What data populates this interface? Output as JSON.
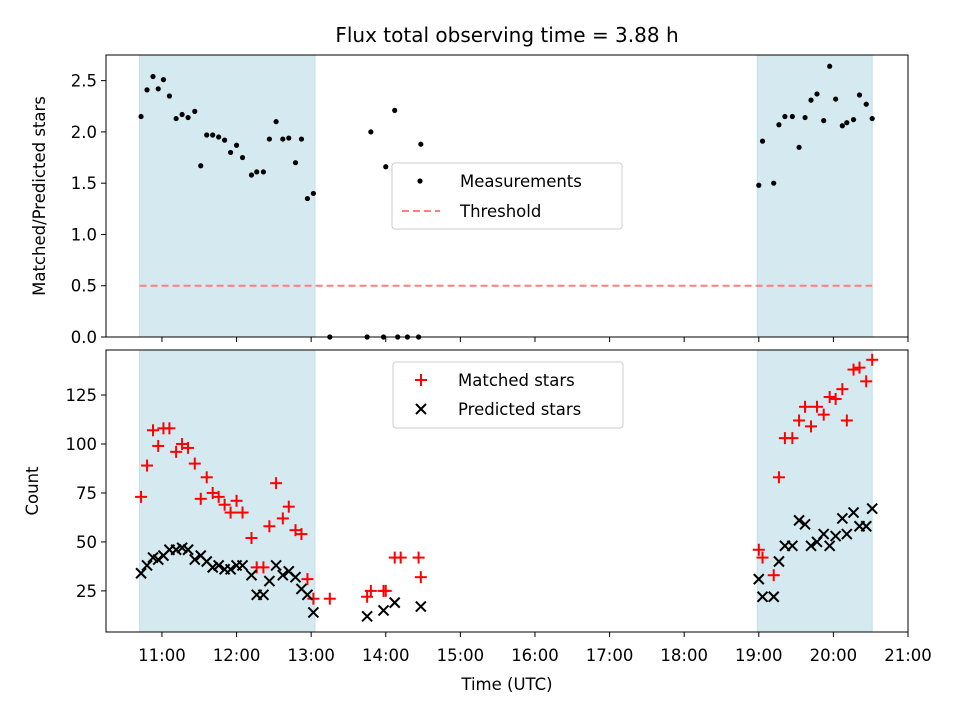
{
  "chart_data": {
    "type": "scatter",
    "title": "Flux total observing time = 3.88 h",
    "xlabel": "Time (UTC)",
    "xlim": [
      10.25,
      21.0
    ],
    "x_ticks": [
      {
        "v": 11,
        "label": "11:00"
      },
      {
        "v": 12,
        "label": "12:00"
      },
      {
        "v": 13,
        "label": "13:00"
      },
      {
        "v": 14,
        "label": "14:00"
      },
      {
        "v": 15,
        "label": "15:00"
      },
      {
        "v": 16,
        "label": "16:00"
      },
      {
        "v": 17,
        "label": "17:00"
      },
      {
        "v": 18,
        "label": "18:00"
      },
      {
        "v": 19,
        "label": "19:00"
      },
      {
        "v": 20,
        "label": "20:00"
      },
      {
        "v": 21,
        "label": "21:00"
      }
    ],
    "shaded_spans": [
      [
        10.7,
        13.05
      ],
      [
        18.98,
        20.52
      ]
    ],
    "shade_color": "#d4eaf0",
    "panels": [
      {
        "ylabel": "Matched/Predicted stars",
        "ylim": [
          0,
          2.75
        ],
        "y_ticks": [
          {
            "v": 0.0,
            "label": "0.0"
          },
          {
            "v": 0.5,
            "label": "0.5"
          },
          {
            "v": 1.0,
            "label": "1.0"
          },
          {
            "v": 1.5,
            "label": "1.5"
          },
          {
            "v": 2.0,
            "label": "2.0"
          },
          {
            "v": 2.5,
            "label": "2.5"
          }
        ],
        "threshold": {
          "value": 0.5,
          "x_range": [
            10.7,
            20.52
          ],
          "color": "#ff7f7f"
        },
        "legend": {
          "position": "center-right",
          "items": [
            {
              "label": "Measurements",
              "marker": "dot",
              "color": "#000000"
            },
            {
              "label": "Threshold",
              "marker": "dash",
              "color": "#ff7f7f"
            }
          ]
        },
        "series": [
          {
            "name": "Measurements",
            "marker": "dot",
            "color": "#000000",
            "points": [
              [
                10.72,
                2.15
              ],
              [
                10.8,
                2.41
              ],
              [
                10.88,
                2.54
              ],
              [
                10.95,
                2.42
              ],
              [
                11.02,
                2.51
              ],
              [
                11.1,
                2.35
              ],
              [
                11.19,
                2.13
              ],
              [
                11.27,
                2.17
              ],
              [
                11.35,
                2.14
              ],
              [
                11.44,
                2.2
              ],
              [
                11.52,
                1.67
              ],
              [
                11.6,
                1.97
              ],
              [
                11.68,
                1.97
              ],
              [
                11.76,
                1.95
              ],
              [
                11.84,
                1.92
              ],
              [
                11.92,
                1.8
              ],
              [
                12.0,
                1.87
              ],
              [
                12.08,
                1.75
              ],
              [
                12.2,
                1.58
              ],
              [
                12.27,
                1.61
              ],
              [
                12.36,
                1.61
              ],
              [
                12.44,
                1.93
              ],
              [
                12.53,
                2.1
              ],
              [
                12.62,
                1.93
              ],
              [
                12.7,
                1.94
              ],
              [
                12.79,
                1.7
              ],
              [
                12.87,
                1.93
              ],
              [
                12.95,
                1.35
              ],
              [
                13.03,
                1.4
              ],
              [
                13.25,
                0.0
              ],
              [
                13.75,
                0.0
              ],
              [
                13.8,
                2.0
              ],
              [
                13.97,
                0.0
              ],
              [
                14.0,
                1.66
              ],
              [
                14.12,
                2.21
              ],
              [
                14.16,
                0.0
              ],
              [
                14.29,
                0.0
              ],
              [
                14.44,
                0.0
              ],
              [
                14.47,
                1.88
              ],
              [
                19.0,
                1.48
              ],
              [
                19.05,
                1.91
              ],
              [
                19.2,
                1.5
              ],
              [
                19.27,
                2.07
              ],
              [
                19.35,
                2.15
              ],
              [
                19.45,
                2.15
              ],
              [
                19.54,
                1.85
              ],
              [
                19.62,
                2.14
              ],
              [
                19.7,
                2.31
              ],
              [
                19.78,
                2.37
              ],
              [
                19.87,
                2.11
              ],
              [
                19.95,
                2.64
              ],
              [
                20.03,
                2.32
              ],
              [
                20.12,
                2.06
              ],
              [
                20.18,
                2.09
              ],
              [
                20.27,
                2.12
              ],
              [
                20.35,
                2.36
              ],
              [
                20.44,
                2.27
              ],
              [
                20.52,
                2.13
              ]
            ]
          }
        ]
      },
      {
        "ylabel": "Count",
        "ylim": [
          4,
          148
        ],
        "y_ticks": [
          {
            "v": 25,
            "label": "25"
          },
          {
            "v": 50,
            "label": "50"
          },
          {
            "v": 75,
            "label": "75"
          },
          {
            "v": 100,
            "label": "100"
          },
          {
            "v": 125,
            "label": "125"
          }
        ],
        "legend": {
          "position": "upper-center",
          "items": [
            {
              "label": "Matched stars",
              "marker": "plus",
              "color": "#ff0000"
            },
            {
              "label": "Predicted stars",
              "marker": "x",
              "color": "#000000"
            }
          ]
        },
        "series": [
          {
            "name": "Matched stars",
            "marker": "plus",
            "color": "#ff0000",
            "points": [
              [
                10.72,
                73
              ],
              [
                10.8,
                89
              ],
              [
                10.88,
                107
              ],
              [
                10.95,
                99
              ],
              [
                11.02,
                108
              ],
              [
                11.1,
                108
              ],
              [
                11.19,
                96
              ],
              [
                11.27,
                100
              ],
              [
                11.35,
                98
              ],
              [
                11.44,
                90
              ],
              [
                11.52,
                72
              ],
              [
                11.6,
                83
              ],
              [
                11.68,
                75
              ],
              [
                11.76,
                73
              ],
              [
                11.84,
                69
              ],
              [
                11.92,
                65
              ],
              [
                12.0,
                71
              ],
              [
                12.08,
                65
              ],
              [
                12.2,
                52
              ],
              [
                12.27,
                37
              ],
              [
                12.36,
                37
              ],
              [
                12.44,
                58
              ],
              [
                12.53,
                80
              ],
              [
                12.62,
                62
              ],
              [
                12.7,
                68
              ],
              [
                12.79,
                56
              ],
              [
                12.87,
                54
              ],
              [
                12.95,
                31
              ],
              [
                13.03,
                21
              ],
              [
                13.25,
                21
              ],
              [
                13.75,
                22
              ],
              [
                13.8,
                25
              ],
              [
                13.97,
                25
              ],
              [
                14.0,
                25
              ],
              [
                14.12,
                42
              ],
              [
                14.2,
                42
              ],
              [
                14.44,
                42
              ],
              [
                14.47,
                32
              ],
              [
                19.0,
                46
              ],
              [
                19.05,
                42
              ],
              [
                19.2,
                33
              ],
              [
                19.27,
                83
              ],
              [
                19.35,
                103
              ],
              [
                19.45,
                103
              ],
              [
                19.54,
                112
              ],
              [
                19.62,
                119
              ],
              [
                19.7,
                109
              ],
              [
                19.78,
                119
              ],
              [
                19.87,
                115
              ],
              [
                19.95,
                124
              ],
              [
                20.03,
                123
              ],
              [
                20.12,
                128
              ],
              [
                20.18,
                112
              ],
              [
                20.27,
                138
              ],
              [
                20.35,
                139
              ],
              [
                20.44,
                132
              ],
              [
                20.52,
                143
              ]
            ]
          },
          {
            "name": "Predicted stars",
            "marker": "x",
            "color": "#000000",
            "points": [
              [
                10.72,
                34
              ],
              [
                10.8,
                38
              ],
              [
                10.88,
                42
              ],
              [
                10.95,
                41
              ],
              [
                11.02,
                43
              ],
              [
                11.1,
                46
              ],
              [
                11.19,
                46
              ],
              [
                11.27,
                47
              ],
              [
                11.35,
                46
              ],
              [
                11.44,
                41
              ],
              [
                11.52,
                43
              ],
              [
                11.6,
                40
              ],
              [
                11.68,
                37
              ],
              [
                11.76,
                38
              ],
              [
                11.84,
                36
              ],
              [
                11.92,
                36
              ],
              [
                12.0,
                38
              ],
              [
                12.08,
                38
              ],
              [
                12.2,
                33
              ],
              [
                12.27,
                23
              ],
              [
                12.36,
                23
              ],
              [
                12.44,
                30
              ],
              [
                12.53,
                38
              ],
              [
                12.62,
                33
              ],
              [
                12.7,
                35
              ],
              [
                12.79,
                32
              ],
              [
                12.87,
                26
              ],
              [
                12.95,
                23
              ],
              [
                13.03,
                14
              ],
              [
                13.75,
                12
              ],
              [
                13.97,
                15
              ],
              [
                14.12,
                19
              ],
              [
                14.47,
                17
              ],
              [
                19.0,
                31
              ],
              [
                19.05,
                22
              ],
              [
                19.2,
                22
              ],
              [
                19.27,
                40
              ],
              [
                19.35,
                48
              ],
              [
                19.45,
                48
              ],
              [
                19.54,
                61
              ],
              [
                19.62,
                59
              ],
              [
                19.7,
                48
              ],
              [
                19.78,
                50
              ],
              [
                19.87,
                54
              ],
              [
                19.95,
                48
              ],
              [
                20.03,
                53
              ],
              [
                20.12,
                62
              ],
              [
                20.18,
                54
              ],
              [
                20.27,
                65
              ],
              [
                20.35,
                58
              ],
              [
                20.44,
                58
              ],
              [
                20.52,
                67
              ]
            ]
          }
        ]
      }
    ]
  }
}
